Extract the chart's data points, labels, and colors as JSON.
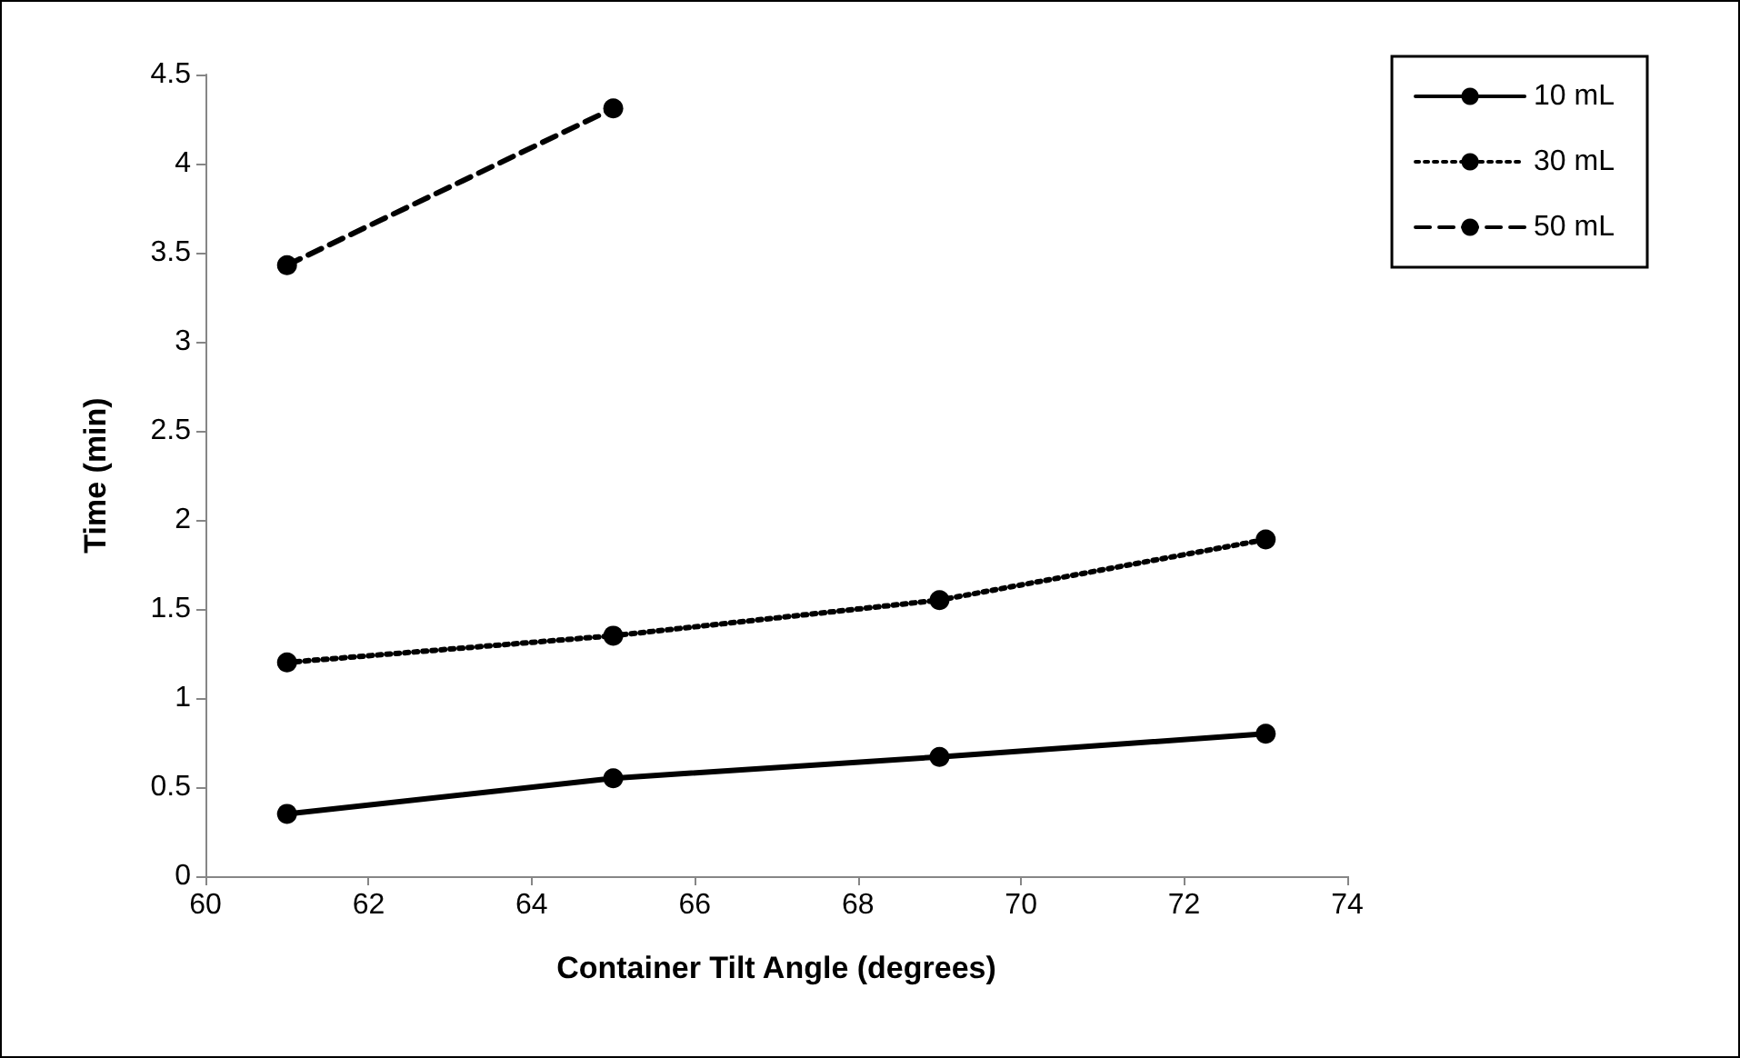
{
  "chart_data": {
    "type": "line",
    "xlabel": "Container Tilt Angle (degrees)",
    "ylabel": "Time (min)",
    "xlim": [
      60,
      74
    ],
    "xticks": [
      60,
      62,
      64,
      66,
      68,
      70,
      72,
      74
    ],
    "ylim": [
      0,
      4.5
    ],
    "yticks": [
      0,
      0.5,
      1,
      1.5,
      2,
      2.5,
      3,
      3.5,
      4,
      4.5
    ],
    "grid": false,
    "legend": "top right",
    "marker": "circle",
    "series": [
      {
        "name": "10 mL",
        "color": "#000000",
        "line_style": "solid",
        "x": [
          61,
          65,
          69,
          73
        ],
        "values": [
          0.35,
          0.55,
          0.67,
          0.8
        ]
      },
      {
        "name": "30 mL",
        "color": "#000000",
        "line_style": "dotted",
        "x": [
          61,
          65,
          69,
          73
        ],
        "values": [
          1.2,
          1.35,
          1.55,
          1.89
        ]
      },
      {
        "name": "50 mL",
        "color": "#000000",
        "line_style": "dashed",
        "x": [
          61,
          65
        ],
        "values": [
          3.43,
          4.31
        ]
      }
    ]
  }
}
